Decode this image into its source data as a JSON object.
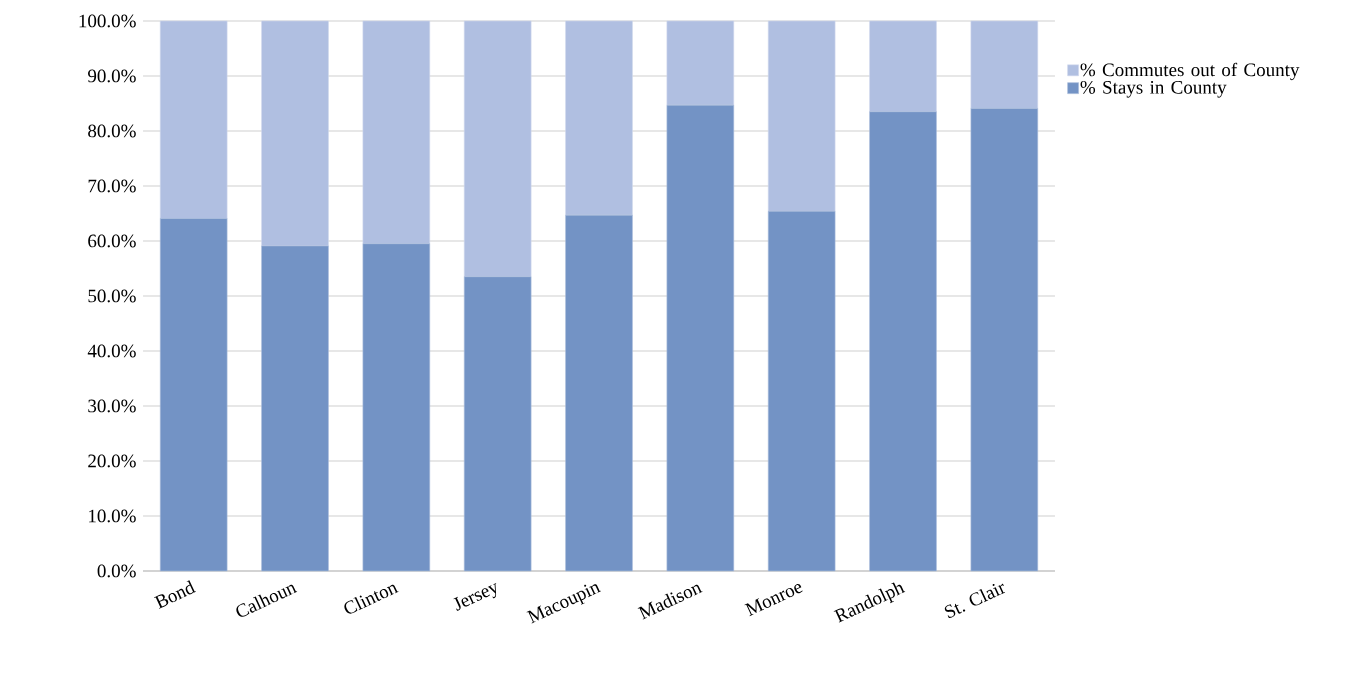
{
  "chart_data": {
    "type": "bar",
    "stacked": true,
    "categories": [
      "Bond",
      "Calhoun",
      "Clinton",
      "Jersey",
      "Macoupin",
      "Madison",
      "Monroe",
      "Randolph",
      "St. Clair"
    ],
    "series": [
      {
        "name": "% Stays in County",
        "color": "#7393c5",
        "values": [
          64.1,
          59.1,
          59.5,
          53.5,
          64.7,
          84.7,
          65.4,
          83.5,
          84.1
        ]
      },
      {
        "name": "% Commutes out of County",
        "color": "#b0bfe1",
        "values": [
          35.9,
          40.9,
          40.5,
          46.5,
          35.3,
          15.3,
          34.6,
          16.5,
          15.9
        ]
      }
    ],
    "ylim": [
      0,
      100
    ],
    "yticks": [
      {
        "value": 0,
        "label": "0.0%"
      },
      {
        "value": 10,
        "label": "10.0%"
      },
      {
        "value": 20,
        "label": "20.0%"
      },
      {
        "value": 30,
        "label": "30.0%"
      },
      {
        "value": 40,
        "label": "40.0%"
      },
      {
        "value": 50,
        "label": "50.0%"
      },
      {
        "value": 60,
        "label": "60.0%"
      },
      {
        "value": 70,
        "label": "70.0%"
      },
      {
        "value": 80,
        "label": "80.0%"
      },
      {
        "value": 90,
        "label": "90.0%"
      },
      {
        "value": 100,
        "label": "100.0%"
      }
    ],
    "grid": "y",
    "legend": "top right"
  }
}
